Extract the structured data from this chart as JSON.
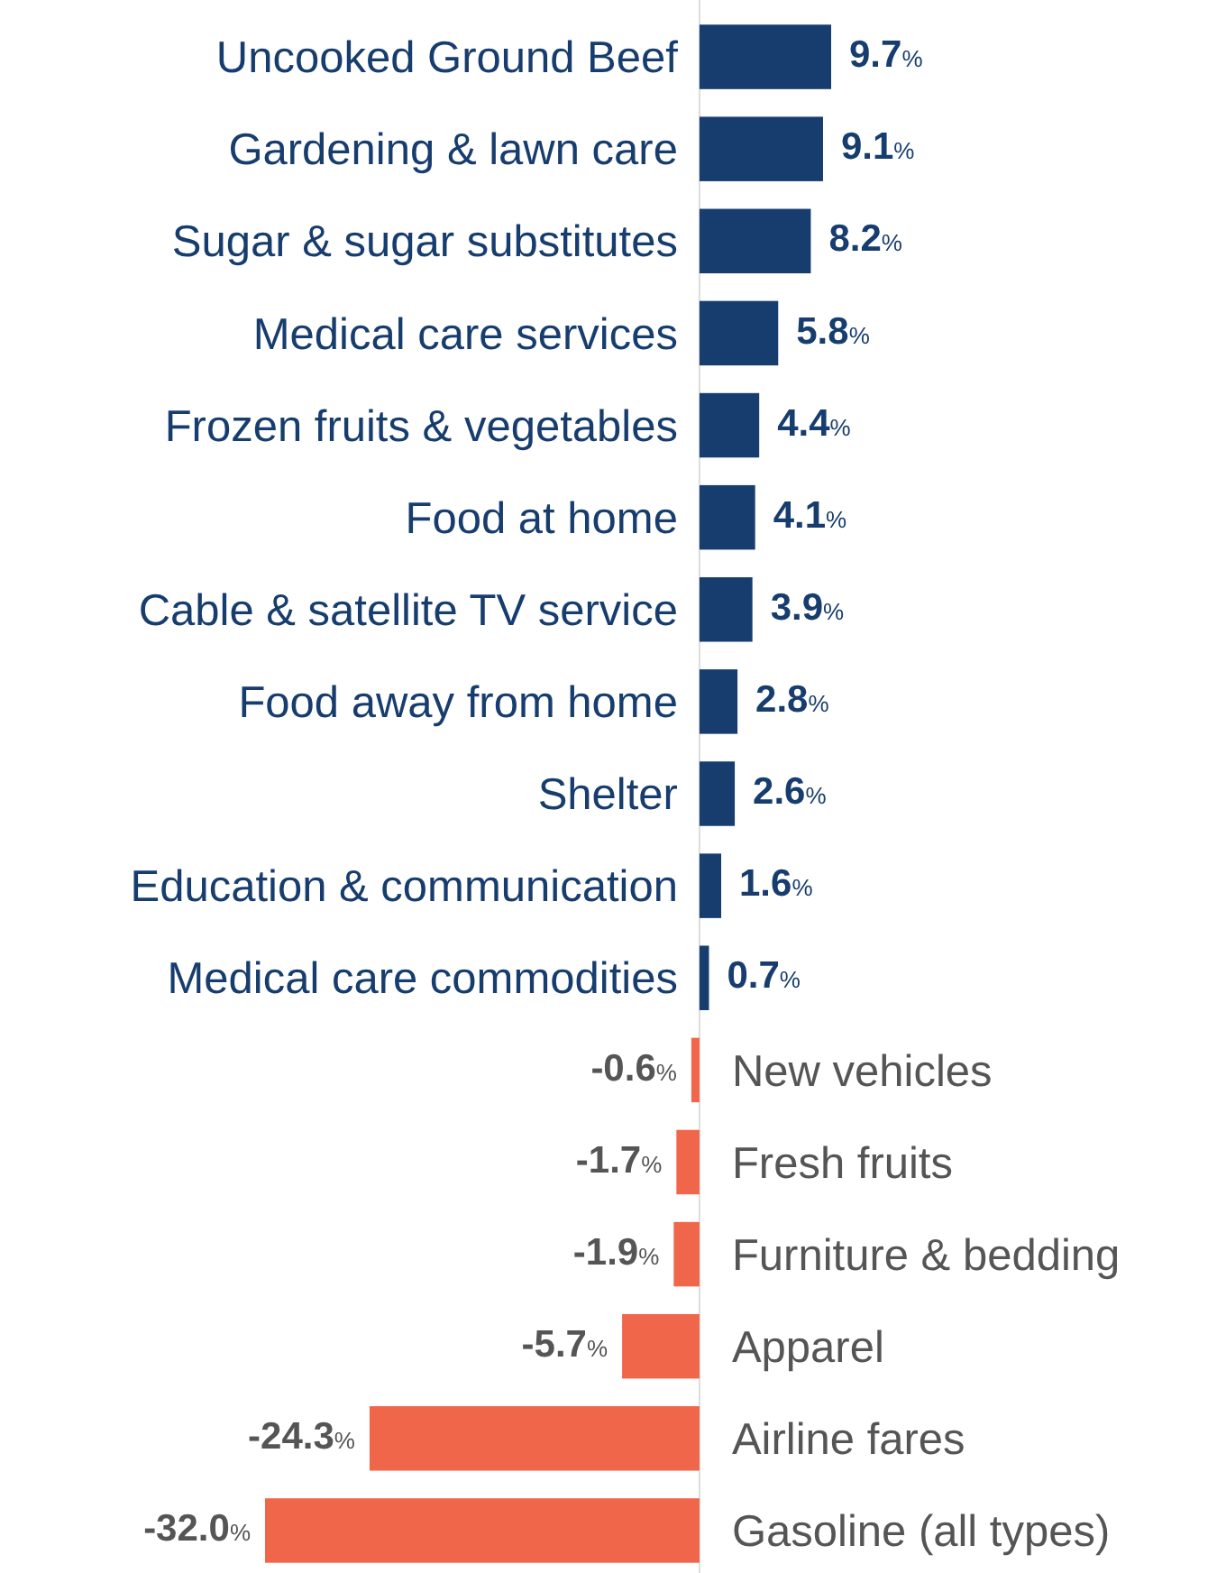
{
  "chart_data": {
    "type": "bar",
    "orientation": "horizontal",
    "categories": [
      "Uncooked Ground Beef",
      "Gardening & lawn care",
      "Sugar & sugar substitutes",
      "Medical care services",
      "Frozen fruits & vegetables",
      "Food at home",
      "Cable & satellite TV service",
      "Food away from home",
      "Shelter",
      "Education & communication",
      "Medical care commodities",
      "New vehicles",
      "Fresh fruits",
      "Furniture & bedding",
      "Apparel",
      "Airline fares",
      "Gasoline (all types)"
    ],
    "values": [
      9.7,
      9.1,
      8.2,
      5.8,
      4.4,
      4.1,
      3.9,
      2.8,
      2.6,
      1.6,
      0.7,
      -0.6,
      -1.7,
      -1.9,
      -5.7,
      -24.3,
      -32.0
    ],
    "colors": [
      "#173d6e",
      "#173d6e",
      "#173d6e",
      "#173d6e",
      "#173d6e",
      "#173d6e",
      "#173d6e",
      "#173d6e",
      "#173d6e",
      "#173d6e",
      "#173d6e",
      "#f0664a",
      "#f0664a",
      "#f0664a",
      "#f0664a",
      "#f0664a",
      "#f0664a"
    ],
    "value_labels": [
      "9.7%",
      "9.1%",
      "8.2%",
      "5.8%",
      "4.4%",
      "4.1%",
      "3.9%",
      "2.8%",
      "2.6%",
      "1.6%",
      "0.7%",
      "-0.6%",
      "-1.7%",
      "-1.9%",
      "-5.7%",
      "-24.3%",
      "-32.0%"
    ]
  }
}
